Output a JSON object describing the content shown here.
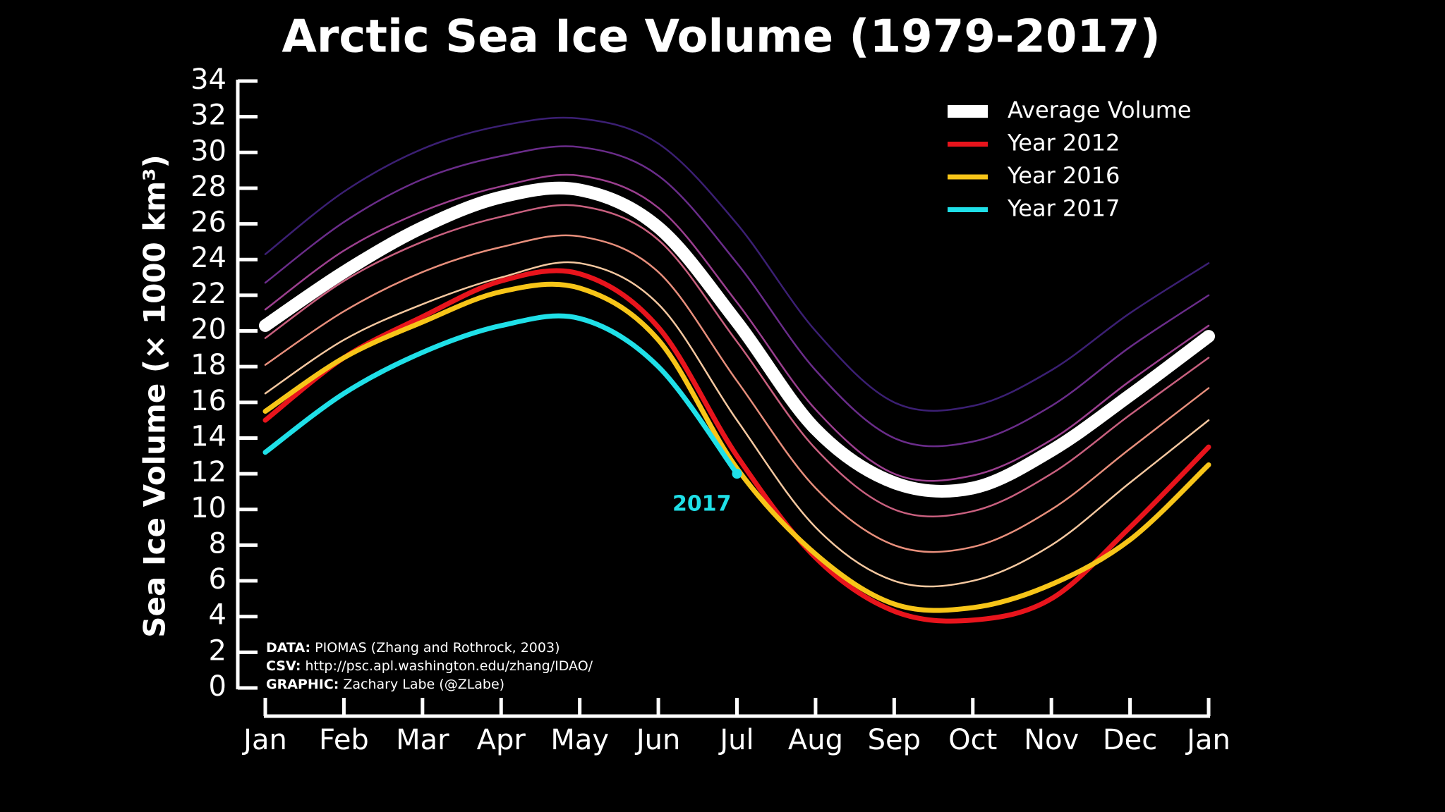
{
  "chart_data": {
    "type": "line",
    "title": "Arctic Sea Ice Volume (1979-2017)",
    "y_label": "Sea Ice Volume (× 1000 km³)",
    "categories": [
      "Jan",
      "Feb",
      "Mar",
      "Apr",
      "May",
      "Jun",
      "Jul",
      "Aug",
      "Sep",
      "Oct",
      "Nov",
      "Dec",
      "Jan"
    ],
    "ylim": [
      0,
      34
    ],
    "yticks": [
      0,
      2,
      4,
      6,
      8,
      10,
      12,
      14,
      16,
      18,
      20,
      22,
      24,
      26,
      28,
      30,
      32,
      34
    ],
    "legend": "upper right",
    "annotation": "2017",
    "credits": [
      {
        "label": "DATA:",
        "text": "PIOMAS (Zhang and Rothrock, 2003)"
      },
      {
        "label": "CSV:",
        "text": "http://psc.apl.washington.edu/zhang/IDAO/"
      },
      {
        "label": "GRAPHIC:",
        "text": "Zachary Labe (@ZLabe)"
      }
    ],
    "series": [
      {
        "color": "#3b1f73",
        "values": [
          24.3,
          27.8,
          30.2,
          31.5,
          31.9,
          30.5,
          26.0,
          20.0,
          16.0,
          15.8,
          17.8,
          21.0,
          23.8
        ]
      },
      {
        "color": "#6a2c8a",
        "values": [
          22.7,
          26.1,
          28.5,
          29.8,
          30.3,
          28.7,
          23.8,
          17.8,
          14.0,
          13.8,
          15.8,
          19.1,
          22.0
        ]
      },
      {
        "color": "#9c3f8f",
        "values": [
          21.2,
          24.5,
          26.7,
          28.1,
          28.7,
          26.9,
          21.6,
          15.6,
          12.0,
          11.9,
          13.9,
          17.2,
          20.3
        ]
      },
      {
        "color": "#c9607f",
        "values": [
          19.6,
          22.8,
          25.0,
          26.4,
          27.0,
          25.1,
          19.4,
          13.4,
          10.0,
          9.9,
          12.0,
          15.3,
          18.5
        ]
      },
      {
        "color": "#e88f7c",
        "values": [
          18.1,
          21.1,
          23.3,
          24.7,
          25.3,
          23.3,
          17.2,
          11.2,
          8.0,
          7.9,
          10.0,
          13.4,
          16.8
        ]
      },
      {
        "color": "#f5c8a0",
        "values": [
          16.5,
          19.5,
          21.5,
          23.0,
          23.8,
          21.5,
          15.0,
          9.0,
          6.0,
          6.0,
          8.0,
          11.5,
          15.0
        ]
      },
      {
        "name": "Average Volume",
        "color": "#ffffff",
        "values": [
          20.3,
          23.3,
          25.8,
          27.5,
          27.9,
          25.8,
          20.5,
          14.5,
          11.5,
          11.2,
          13.3,
          16.4,
          19.7
        ]
      },
      {
        "name": "Year 2012",
        "color": "#e8141c",
        "values": [
          15.0,
          18.5,
          20.8,
          22.8,
          23.2,
          20.2,
          13.0,
          7.3,
          4.3,
          3.8,
          5.0,
          9.0,
          13.5
        ]
      },
      {
        "name": "Year 2016",
        "color": "#f7c518",
        "values": [
          15.5,
          18.5,
          20.5,
          22.2,
          22.4,
          19.5,
          12.3,
          7.5,
          4.7,
          4.5,
          5.8,
          8.3,
          12.5
        ]
      },
      {
        "name": "Year 2017",
        "color": "#1fe0e8",
        "values": [
          13.2,
          16.5,
          18.8,
          20.3,
          20.7,
          18.0,
          12.0,
          null,
          null,
          null,
          null,
          null,
          null
        ]
      }
    ]
  }
}
